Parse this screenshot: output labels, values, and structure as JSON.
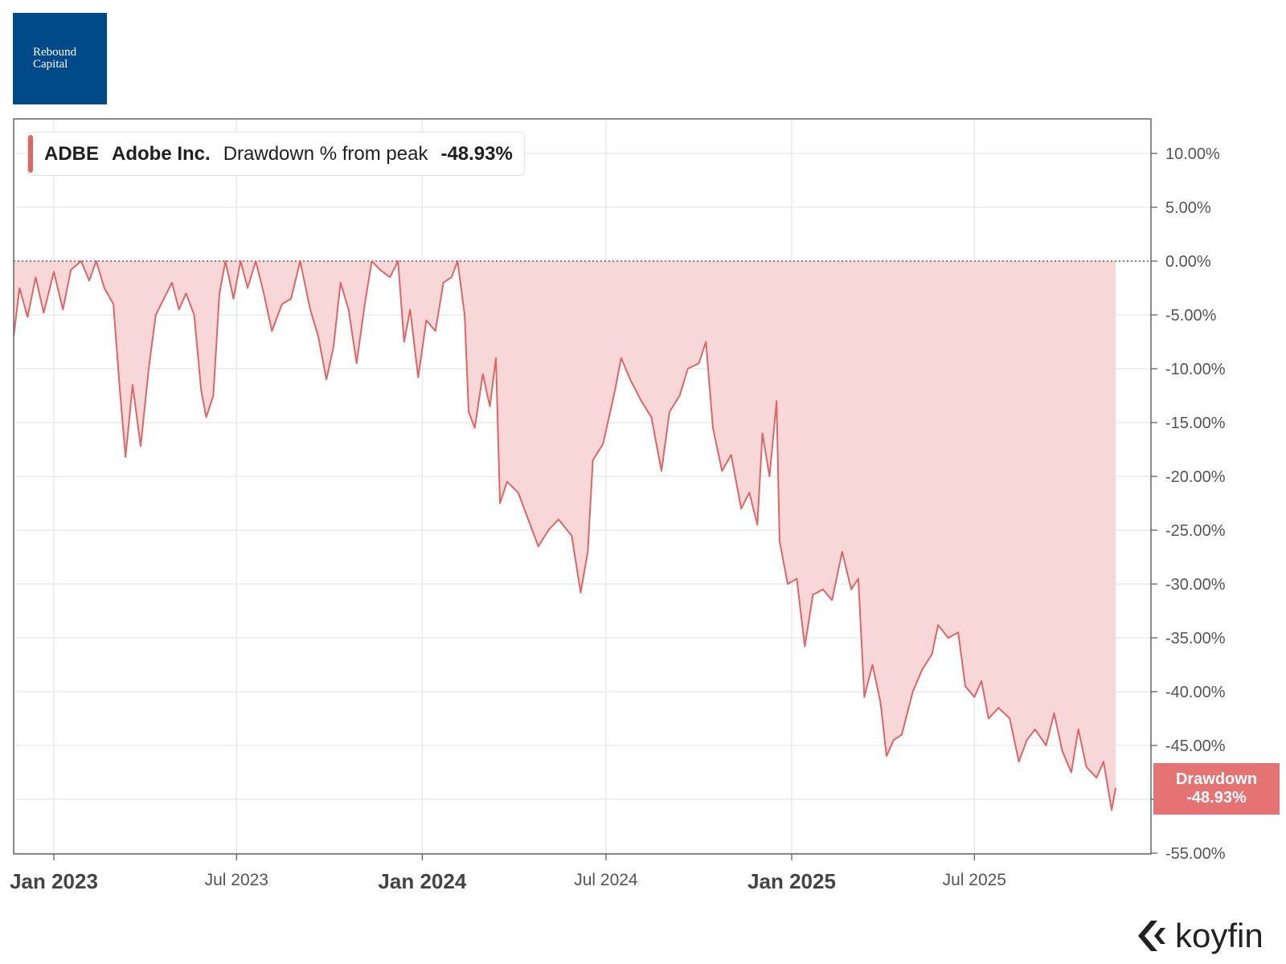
{
  "logo": {
    "line1": "Rebound",
    "line2": "Capital"
  },
  "legend": {
    "ticker": "ADBE",
    "company": "Adobe Inc.",
    "metric": "Drawdown % from peak",
    "value": "-48.93%"
  },
  "end_badge": {
    "label": "Drawdown",
    "value": "-48.93%"
  },
  "brand": {
    "name": "koyfin",
    "icon": "koyfin-chevron-icon"
  },
  "colors": {
    "line": "#e06666",
    "area": "#f7d7d7",
    "badge": "#e57373",
    "logo": "#004a8a",
    "grid": "#e6e6e6"
  },
  "chart_data": {
    "type": "area",
    "title": "",
    "xlabel": "",
    "ylabel": "",
    "grid": true,
    "legend_position": "top-left",
    "y_unit": "%",
    "ylim": [
      -55,
      12
    ],
    "yticks": [
      10,
      5,
      0,
      -5,
      -10,
      -15,
      -20,
      -25,
      -30,
      -35,
      -40,
      -45,
      -50,
      -55
    ],
    "ytick_labels": [
      "10.00%",
      "5.00%",
      "0.00%",
      "-5.00%",
      "-10.00%",
      "-15.00%",
      "-20.00%",
      "-25.00%",
      "-30.00%",
      "-35.00%",
      "-40.00%",
      "-45.00%",
      "",
      "-55.00%"
    ],
    "xlim": [
      "2022-11-20",
      "2025-12-25"
    ],
    "xticks": [
      {
        "date": "2023-01-01",
        "label": "Jan 2023",
        "major": true
      },
      {
        "date": "2023-07-01",
        "label": "Jul 2023",
        "major": false
      },
      {
        "date": "2024-01-01",
        "label": "Jan 2024",
        "major": true
      },
      {
        "date": "2024-07-01",
        "label": "Jul 2024",
        "major": false
      },
      {
        "date": "2025-01-01",
        "label": "Jan 2025",
        "major": true
      },
      {
        "date": "2025-07-01",
        "label": "Jul 2025",
        "major": false
      }
    ],
    "reference_line": {
      "y": 0,
      "style": "dotted"
    },
    "series": [
      {
        "name": "Drawdown % from peak",
        "points": [
          [
            "2022-11-20",
            -7.0
          ],
          [
            "2022-11-28",
            -2.5
          ],
          [
            "2022-12-06",
            -5.2
          ],
          [
            "2022-12-14",
            -1.5
          ],
          [
            "2022-12-22",
            -4.8
          ],
          [
            "2023-01-01",
            -1.0
          ],
          [
            "2023-01-10",
            -4.5
          ],
          [
            "2023-01-18",
            -0.8
          ],
          [
            "2023-01-28",
            0.0
          ],
          [
            "2023-02-05",
            -1.8
          ],
          [
            "2023-02-12",
            0.0
          ],
          [
            "2023-02-20",
            -2.5
          ],
          [
            "2023-03-01",
            -4.0
          ],
          [
            "2023-03-07",
            -11.5
          ],
          [
            "2023-03-13",
            -18.2
          ],
          [
            "2023-03-20",
            -11.5
          ],
          [
            "2023-03-28",
            -17.2
          ],
          [
            "2023-04-05",
            -10.0
          ],
          [
            "2023-04-12",
            -5.0
          ],
          [
            "2023-04-20",
            -3.5
          ],
          [
            "2023-04-28",
            -2.0
          ],
          [
            "2023-05-05",
            -4.5
          ],
          [
            "2023-05-12",
            -3.0
          ],
          [
            "2023-05-20",
            -5.0
          ],
          [
            "2023-05-27",
            -12.0
          ],
          [
            "2023-06-01",
            -14.5
          ],
          [
            "2023-06-08",
            -12.5
          ],
          [
            "2023-06-14",
            -3.0
          ],
          [
            "2023-06-20",
            0.0
          ],
          [
            "2023-06-28",
            -3.5
          ],
          [
            "2023-07-05",
            0.0
          ],
          [
            "2023-07-12",
            -2.5
          ],
          [
            "2023-07-20",
            0.0
          ],
          [
            "2023-07-28",
            -3.0
          ],
          [
            "2023-08-05",
            -6.5
          ],
          [
            "2023-08-15",
            -4.0
          ],
          [
            "2023-08-24",
            -3.5
          ],
          [
            "2023-09-02",
            0.0
          ],
          [
            "2023-09-12",
            -4.5
          ],
          [
            "2023-09-20",
            -7.0
          ],
          [
            "2023-09-28",
            -11.0
          ],
          [
            "2023-10-05",
            -8.0
          ],
          [
            "2023-10-12",
            -2.0
          ],
          [
            "2023-10-20",
            -4.5
          ],
          [
            "2023-10-28",
            -9.5
          ],
          [
            "2023-11-05",
            -4.0
          ],
          [
            "2023-11-12",
            0.0
          ],
          [
            "2023-11-20",
            -0.8
          ],
          [
            "2023-11-30",
            -1.5
          ],
          [
            "2023-12-08",
            0.0
          ],
          [
            "2023-12-14",
            -7.5
          ],
          [
            "2023-12-20",
            -4.5
          ],
          [
            "2023-12-28",
            -10.8
          ],
          [
            "2024-01-05",
            -5.5
          ],
          [
            "2024-01-14",
            -6.5
          ],
          [
            "2024-01-22",
            -2.0
          ],
          [
            "2024-01-30",
            -1.5
          ],
          [
            "2024-02-05",
            0.0
          ],
          [
            "2024-02-12",
            -5.0
          ],
          [
            "2024-02-16",
            -14.0
          ],
          [
            "2024-02-22",
            -15.5
          ],
          [
            "2024-03-01",
            -10.5
          ],
          [
            "2024-03-08",
            -13.5
          ],
          [
            "2024-03-14",
            -9.0
          ],
          [
            "2024-03-18",
            -22.5
          ],
          [
            "2024-03-25",
            -20.5
          ],
          [
            "2024-04-05",
            -21.5
          ],
          [
            "2024-04-15",
            -24.0
          ],
          [
            "2024-04-25",
            -26.5
          ],
          [
            "2024-05-05",
            -25.0
          ],
          [
            "2024-05-15",
            -24.0
          ],
          [
            "2024-05-28",
            -25.5
          ],
          [
            "2024-06-06",
            -30.8
          ],
          [
            "2024-06-13",
            -27.0
          ],
          [
            "2024-06-18",
            -18.5
          ],
          [
            "2024-06-28",
            -17.0
          ],
          [
            "2024-07-10",
            -12.0
          ],
          [
            "2024-07-16",
            -9.0
          ],
          [
            "2024-07-25",
            -11.0
          ],
          [
            "2024-08-05",
            -13.0
          ],
          [
            "2024-08-15",
            -14.5
          ],
          [
            "2024-08-25",
            -19.5
          ],
          [
            "2024-09-02",
            -14.0
          ],
          [
            "2024-09-12",
            -12.5
          ],
          [
            "2024-09-20",
            -10.0
          ],
          [
            "2024-10-01",
            -9.5
          ],
          [
            "2024-10-08",
            -7.5
          ],
          [
            "2024-10-15",
            -15.5
          ],
          [
            "2024-10-24",
            -19.5
          ],
          [
            "2024-11-02",
            -18.0
          ],
          [
            "2024-11-12",
            -23.0
          ],
          [
            "2024-11-20",
            -21.5
          ],
          [
            "2024-11-28",
            -24.5
          ],
          [
            "2024-12-03",
            -16.0
          ],
          [
            "2024-12-10",
            -20.0
          ],
          [
            "2024-12-17",
            -13.0
          ],
          [
            "2024-12-20",
            -26.0
          ],
          [
            "2024-12-28",
            -30.0
          ],
          [
            "2025-01-06",
            -29.5
          ],
          [
            "2025-01-14",
            -35.8
          ],
          [
            "2025-01-22",
            -31.0
          ],
          [
            "2025-02-01",
            -30.5
          ],
          [
            "2025-02-10",
            -31.5
          ],
          [
            "2025-02-20",
            -27.0
          ],
          [
            "2025-03-01",
            -30.5
          ],
          [
            "2025-03-08",
            -29.5
          ],
          [
            "2025-03-14",
            -40.5
          ],
          [
            "2025-03-22",
            -37.5
          ],
          [
            "2025-03-30",
            -41.0
          ],
          [
            "2025-04-05",
            -46.0
          ],
          [
            "2025-04-12",
            -44.5
          ],
          [
            "2025-04-20",
            -44.0
          ],
          [
            "2025-05-01",
            -40.0
          ],
          [
            "2025-05-10",
            -38.0
          ],
          [
            "2025-05-20",
            -36.5
          ],
          [
            "2025-05-26",
            -33.8
          ],
          [
            "2025-06-05",
            -35.0
          ],
          [
            "2025-06-15",
            -34.5
          ],
          [
            "2025-06-22",
            -39.5
          ],
          [
            "2025-07-01",
            -40.5
          ],
          [
            "2025-07-08",
            -39.0
          ],
          [
            "2025-07-15",
            -42.5
          ],
          [
            "2025-07-25",
            -41.5
          ],
          [
            "2025-08-05",
            -42.5
          ],
          [
            "2025-08-14",
            -46.5
          ],
          [
            "2025-08-22",
            -44.5
          ],
          [
            "2025-08-30",
            -43.5
          ],
          [
            "2025-09-10",
            -45.0
          ],
          [
            "2025-09-18",
            -42.0
          ],
          [
            "2025-09-26",
            -45.5
          ],
          [
            "2025-10-05",
            -47.5
          ],
          [
            "2025-10-12",
            -43.5
          ],
          [
            "2025-10-20",
            -47.0
          ],
          [
            "2025-10-30",
            -48.0
          ],
          [
            "2025-11-06",
            -46.5
          ],
          [
            "2025-11-14",
            -51.0
          ],
          [
            "2025-11-18",
            -48.93
          ]
        ]
      }
    ]
  }
}
